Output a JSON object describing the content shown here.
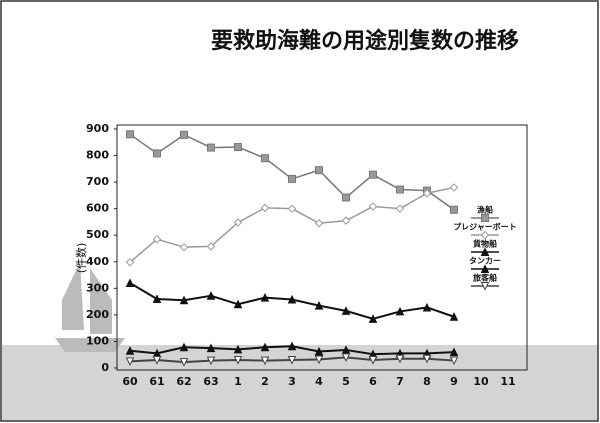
{
  "chart_data": {
    "type": "line",
    "title": "要救助海難の用途別隻数の推移",
    "y_label": "(件数)",
    "categories": [
      "60",
      "61",
      "62",
      "63",
      "1",
      "2",
      "3",
      "4",
      "5",
      "6",
      "7",
      "8",
      "9",
      "10",
      "11"
    ],
    "series": [
      {
        "name": "漁船",
        "color": "#777777",
        "marker": "square",
        "values": [
          880,
          808,
          878,
          830,
          832,
          790,
          712,
          745,
          642,
          728,
          672,
          668,
          596,
          null,
          null
        ]
      },
      {
        "name": "プレジャーボート",
        "color": "#999999",
        "marker": "diamond",
        "values": [
          398,
          485,
          455,
          458,
          548,
          603,
          600,
          545,
          555,
          608,
          600,
          658,
          680,
          null,
          null
        ]
      },
      {
        "name": "貨物船",
        "color": "#111111",
        "marker": "triangle",
        "values": [
          320,
          260,
          255,
          272,
          240,
          265,
          258,
          235,
          215,
          185,
          213,
          228,
          193,
          null,
          null
        ]
      },
      {
        "name": "タンカー",
        "color": "#111111",
        "marker": "triangle",
        "values": [
          65,
          55,
          78,
          75,
          70,
          78,
          82,
          62,
          68,
          52,
          55,
          55,
          60,
          null,
          null
        ]
      },
      {
        "name": "旅客船",
        "color": "#444444",
        "marker": "triangle-down",
        "values": [
          25,
          30,
          22,
          28,
          30,
          28,
          30,
          32,
          40,
          30,
          35,
          35,
          28,
          null,
          null
        ]
      }
    ],
    "ylim": [
      0,
      900
    ],
    "yticks": [
      0,
      100,
      200,
      300,
      400,
      500,
      600,
      700,
      800,
      900
    ],
    "grid": false,
    "legend": "right"
  }
}
